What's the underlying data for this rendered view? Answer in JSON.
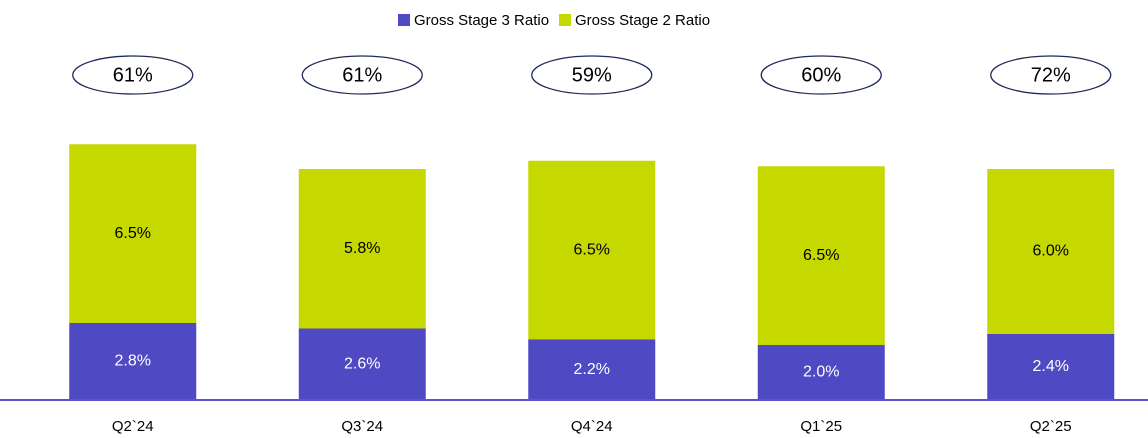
{
  "chart_data": {
    "type": "stacked_bar",
    "categories": [
      "Q2`24",
      "Q3`24",
      "Q4`24",
      "Q1`25",
      "Q2`25"
    ],
    "series": [
      {
        "name": "Gross Stage 3 Ratio",
        "color": "#4f49c3",
        "values": [
          2.8,
          2.6,
          2.2,
          2.0,
          2.4
        ],
        "value_labels": [
          "2.8%",
          "2.6%",
          "2.2%",
          "2.0%",
          "2.4%"
        ]
      },
      {
        "name": "Gross Stage 2 Ratio",
        "color": "#c5d800",
        "values": [
          6.5,
          5.8,
          6.5,
          6.5,
          6.0
        ],
        "value_labels": [
          "6.5%",
          "5.8%",
          "6.5%",
          "6.5%",
          "6.0%"
        ]
      }
    ],
    "annotations": [
      "61%",
      "61%",
      "59%",
      "60%",
      "72%"
    ],
    "legend": "top"
  }
}
